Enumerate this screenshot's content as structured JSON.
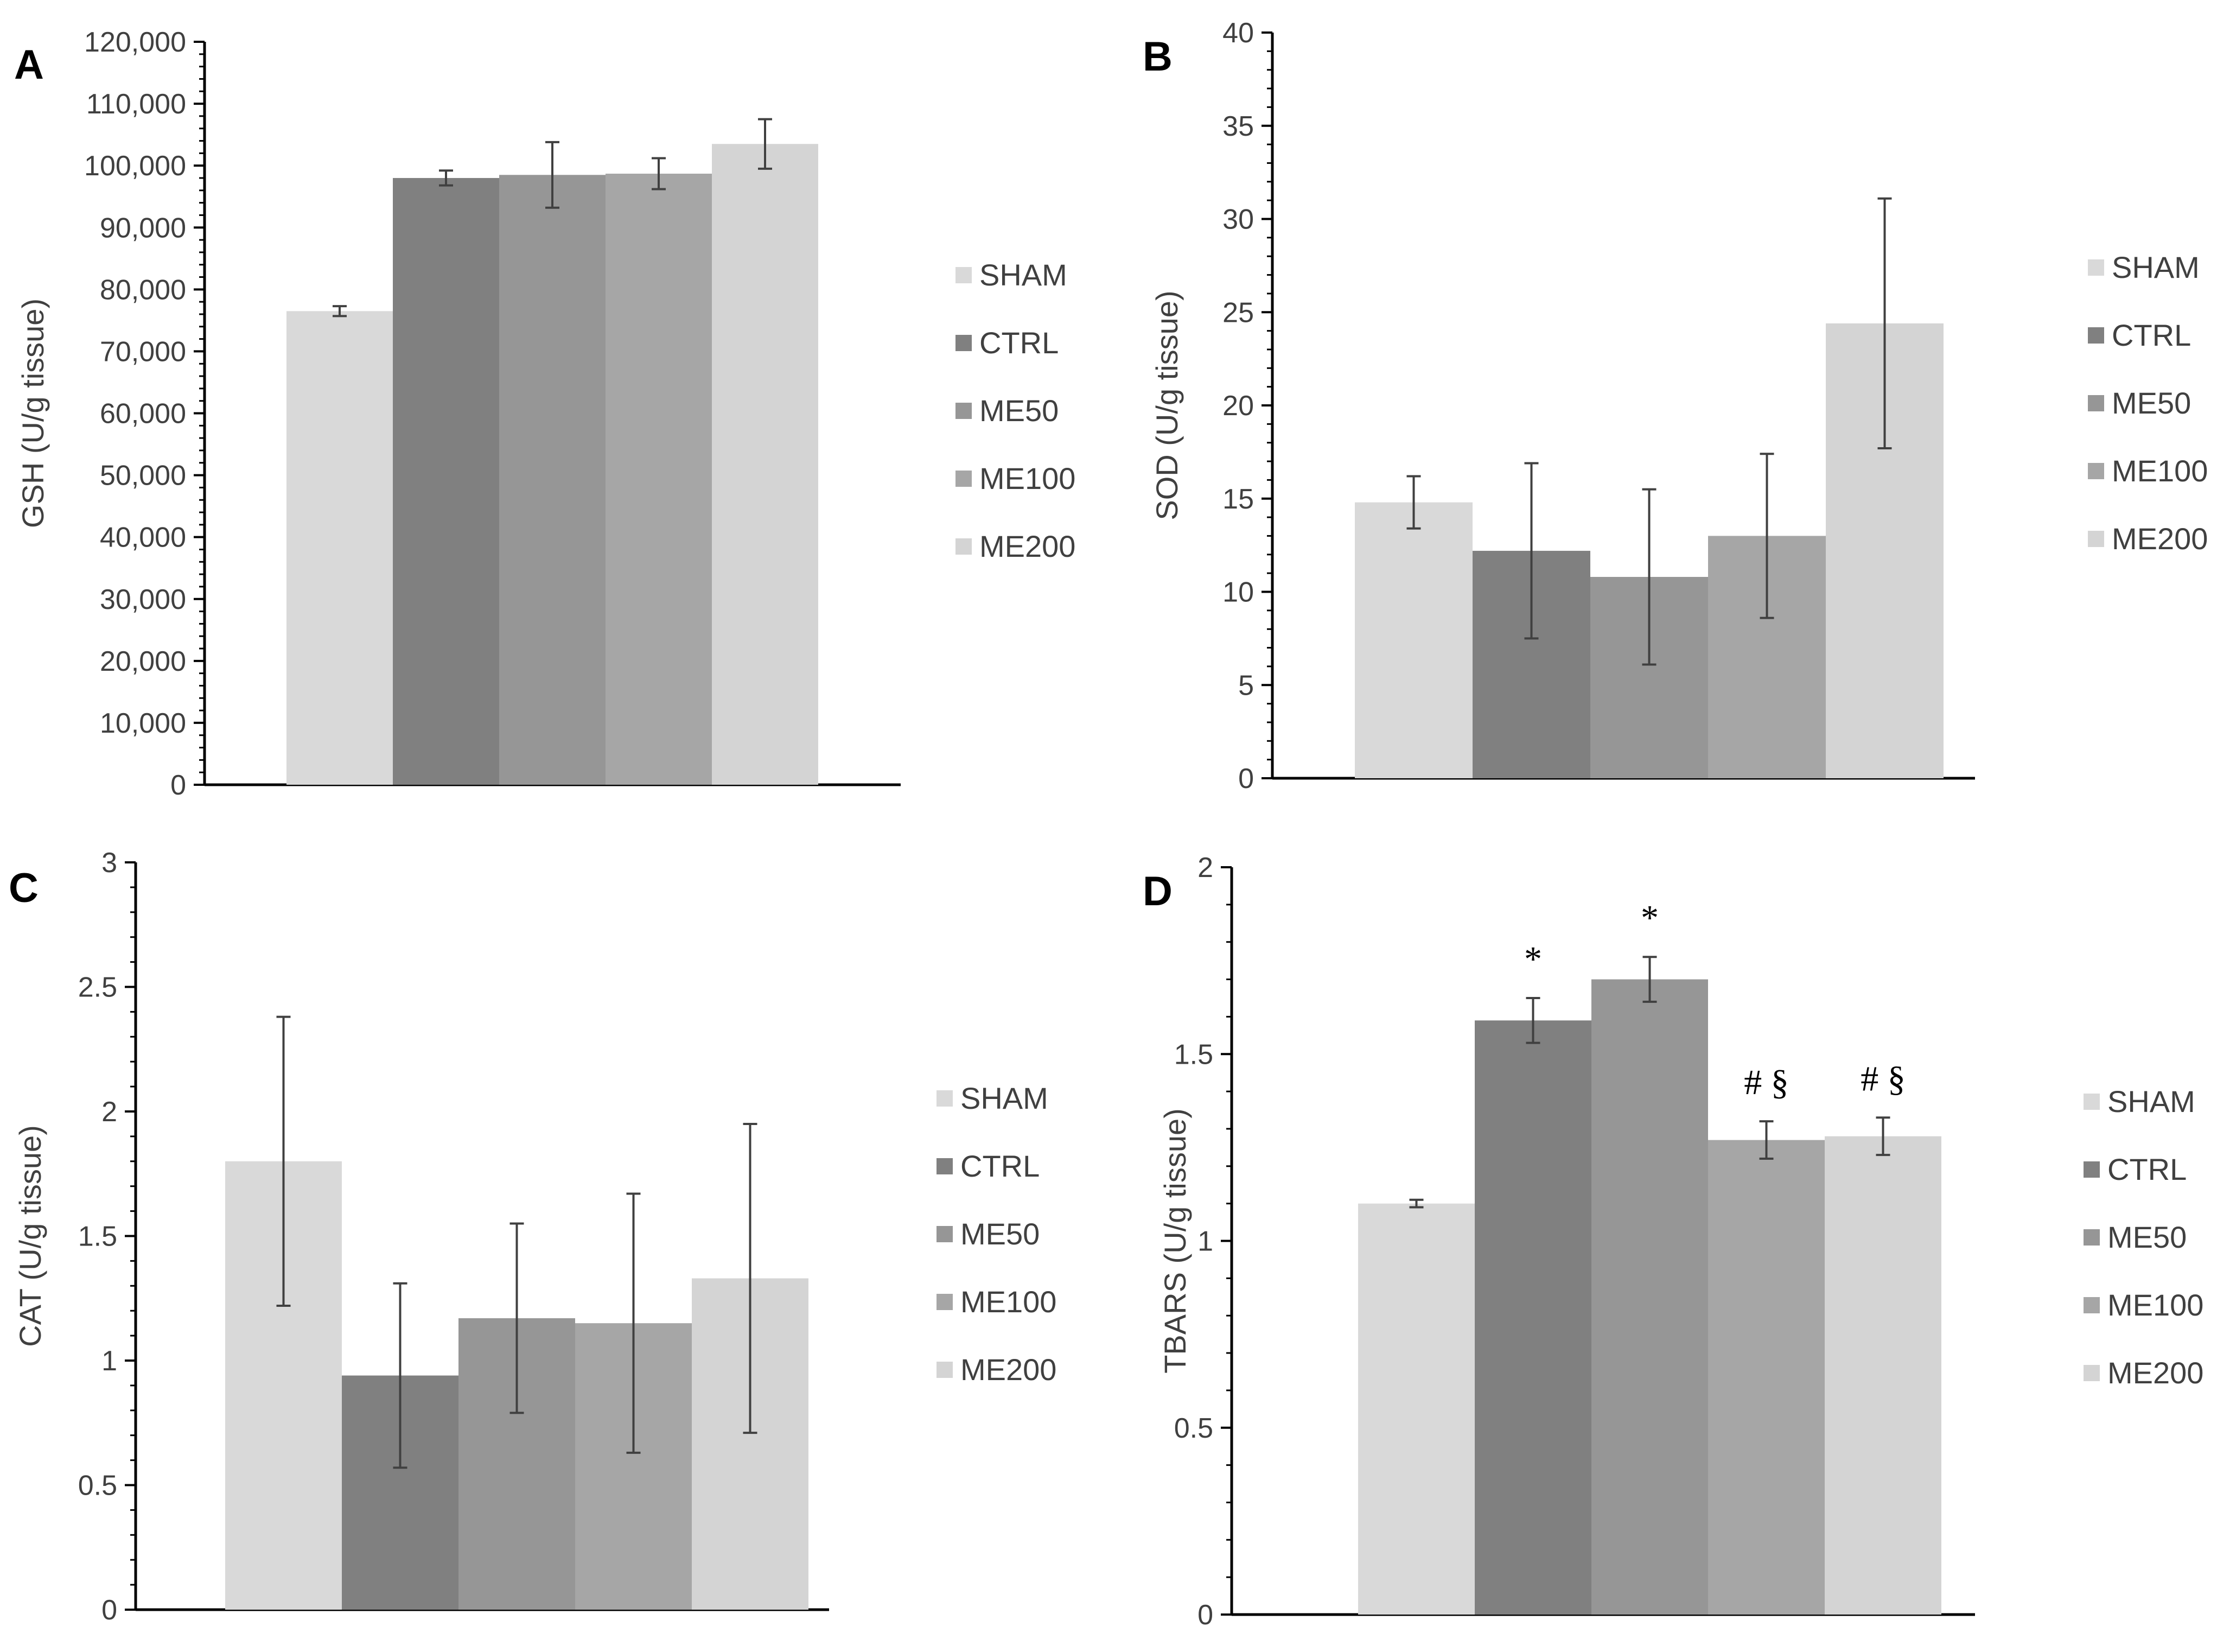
{
  "figure": {
    "categories": [
      "SHAM",
      "CTRL",
      "ME50",
      "ME100",
      "ME200"
    ],
    "colors": {
      "SHAM": "#d9d9d9",
      "CTRL": "#808080",
      "ME50": "#969696",
      "ME100": "#a6a6a6",
      "ME200": "#d4d4d4",
      "axis": "#000000",
      "text": "#404040",
      "error": "#404040"
    }
  },
  "chart_data": [
    {
      "panel": "A",
      "type": "bar",
      "ylabel": "GSH (U/g tissue)",
      "ylim": [
        0,
        120000
      ],
      "yticks": [
        0,
        10000,
        20000,
        30000,
        40000,
        50000,
        60000,
        70000,
        80000,
        90000,
        100000,
        110000,
        120000
      ],
      "ytick_labels": [
        "0",
        "10,000",
        "20,000",
        "30,000",
        "40,000",
        "50,000",
        "60,000",
        "70,000",
        "80,000",
        "90,000",
        "100,000",
        "110,000",
        "120,000"
      ],
      "categories": [
        "SHAM",
        "CTRL",
        "ME50",
        "ME100",
        "ME200"
      ],
      "values": [
        76500,
        98000,
        98500,
        98700,
        103500
      ],
      "errors": [
        800,
        1200,
        5300,
        2500,
        4000
      ],
      "annotations": [
        "",
        "",
        "",
        "",
        ""
      ],
      "legend": [
        "SHAM",
        "CTRL",
        "ME50",
        "ME100",
        "ME200"
      ],
      "legend_position": "right",
      "grid": false
    },
    {
      "panel": "B",
      "type": "bar",
      "ylabel": "SOD  (U/g tissue)",
      "ylim": [
        0,
        40
      ],
      "yticks": [
        0,
        5,
        10,
        15,
        20,
        25,
        30,
        35,
        40
      ],
      "ytick_labels": [
        "0",
        "5",
        "10",
        "15",
        "20",
        "25",
        "30",
        "35",
        "40"
      ],
      "categories": [
        "SHAM",
        "CTRL",
        "ME50",
        "ME100",
        "ME200"
      ],
      "values": [
        14.8,
        12.2,
        10.8,
        13.0,
        24.4
      ],
      "errors": [
        1.4,
        4.7,
        4.7,
        4.4,
        6.7
      ],
      "annotations": [
        "",
        "",
        "",
        "",
        ""
      ],
      "legend": [
        "SHAM",
        "CTRL",
        "ME50",
        "ME100",
        "ME200"
      ],
      "legend_position": "right",
      "grid": false
    },
    {
      "panel": "C",
      "type": "bar",
      "ylabel": "CAT  (U/g tissue)",
      "ylim": [
        0,
        3
      ],
      "yticks": [
        0,
        0.5,
        1,
        1.5,
        2,
        2.5,
        3
      ],
      "ytick_labels": [
        "0",
        "0.5",
        "1",
        "1.5",
        "2",
        "2.5",
        "3"
      ],
      "categories": [
        "SHAM",
        "CTRL",
        "ME50",
        "ME100",
        "ME200"
      ],
      "values": [
        1.8,
        0.94,
        1.17,
        1.15,
        1.33
      ],
      "errors": [
        0.58,
        0.37,
        0.38,
        0.52,
        0.62
      ],
      "annotations": [
        "",
        "",
        "",
        "",
        ""
      ],
      "legend": [
        "SHAM",
        "CTRL",
        "ME50",
        "ME100",
        "ME200"
      ],
      "legend_position": "right",
      "grid": false
    },
    {
      "panel": "D",
      "type": "bar",
      "ylabel": "TBARS  (U/g tissue)",
      "ylim": [
        0,
        2
      ],
      "yticks": [
        0,
        0.5,
        1,
        1.5,
        2
      ],
      "ytick_labels": [
        "0",
        "0.5",
        "1",
        "1.5",
        "2"
      ],
      "categories": [
        "SHAM",
        "CTRL",
        "ME50",
        "ME100",
        "ME200"
      ],
      "values": [
        1.1,
        1.59,
        1.7,
        1.27,
        1.28
      ],
      "errors": [
        0.01,
        0.06,
        0.06,
        0.05,
        0.05
      ],
      "annotations": [
        "",
        "*",
        "*",
        "# §",
        "# §"
      ],
      "legend": [
        "SHAM",
        "CTRL",
        "ME50",
        "ME100",
        "ME200"
      ],
      "legend_position": "right",
      "grid": false
    }
  ]
}
